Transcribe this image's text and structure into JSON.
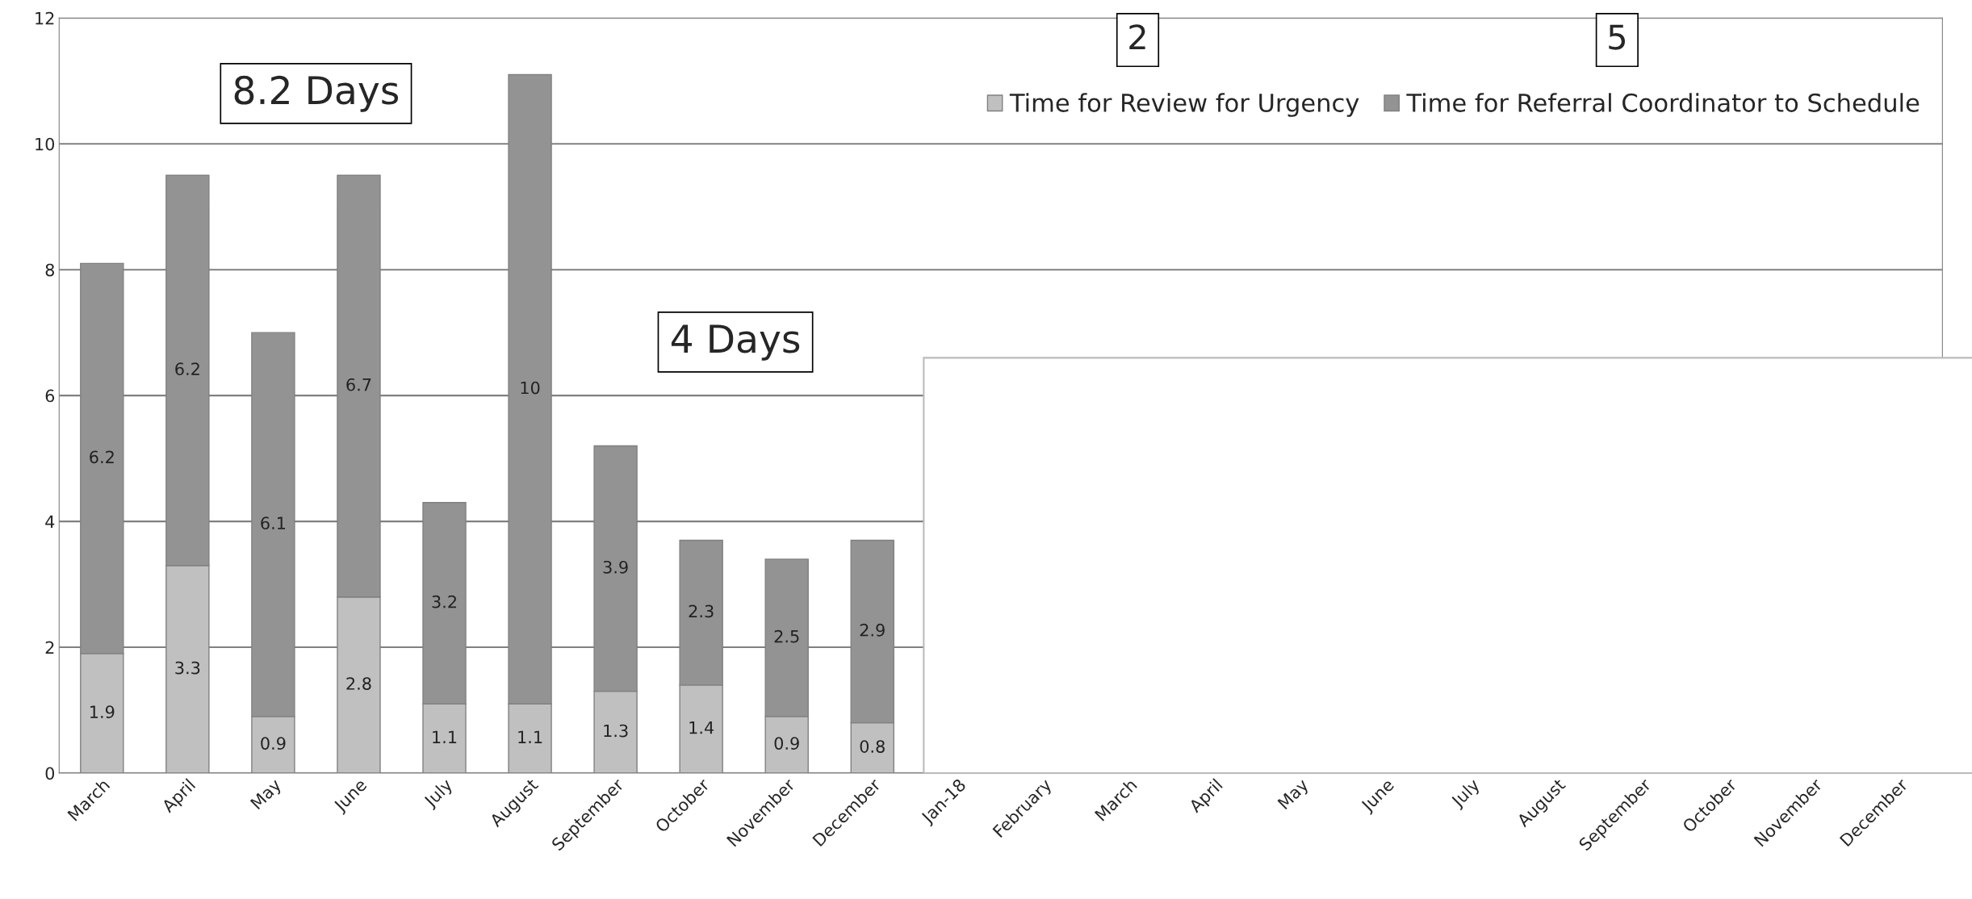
{
  "chart_data": {
    "type": "bar",
    "stacked": true,
    "categories": [
      "March",
      "April",
      "May",
      "June",
      "July",
      "August",
      "September",
      "October",
      "November",
      "December",
      "Jan-18",
      "February",
      "March",
      "April",
      "May",
      "June",
      "July",
      "August",
      "September",
      "October",
      "November",
      "December"
    ],
    "series": [
      {
        "name": "Time for Review for Urgency",
        "color": "#c0c0c0",
        "values": [
          1.9,
          3.3,
          0.9,
          2.8,
          1.1,
          1.1,
          1.3,
          1.4,
          0.9,
          0.8,
          null,
          null,
          null,
          null,
          null,
          null,
          null,
          null,
          null,
          null,
          null,
          null
        ]
      },
      {
        "name": "Time for Referral Coordinator to Schedule",
        "color": "#939393",
        "values": [
          6.2,
          6.2,
          6.1,
          6.7,
          3.2,
          10,
          3.9,
          2.3,
          2.5,
          2.9,
          null,
          null,
          null,
          null,
          null,
          null,
          null,
          null,
          null,
          null,
          null,
          null
        ]
      }
    ],
    "ylim": [
      0,
      12
    ],
    "yticks": [
      0,
      2,
      4,
      6,
      8,
      10,
      12
    ],
    "grid": "y",
    "legend": "top right",
    "data_labels": true,
    "annotations": [
      "8.2 Days",
      "4 Days",
      "2",
      "5"
    ]
  }
}
